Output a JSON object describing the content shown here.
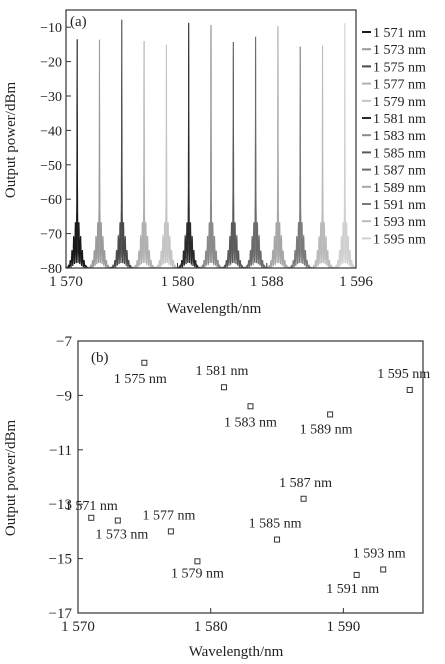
{
  "chart_data": [
    {
      "type": "line",
      "panel_label": "(a)",
      "xlabel": "Wavelength/nm",
      "ylabel": "Output power/dBm",
      "xlim": [
        1570,
        1596
      ],
      "ylim": [
        -80,
        -5
      ],
      "xticks": [
        1570,
        1580,
        1588,
        1596
      ],
      "xtick_labels": [
        "1 570",
        "1 580",
        "1 588",
        "1 596"
      ],
      "yticks": [
        -10,
        -20,
        -30,
        -40,
        -50,
        -60,
        -70,
        -80
      ],
      "ytick_labels": [
        "−10",
        "−20",
        "−30",
        "−40",
        "−50",
        "−60",
        "−70",
        "−80"
      ],
      "legend_position": "right",
      "series": [
        {
          "name": "1 571 nm",
          "peak_x": 1571,
          "peak_y": -13.5,
          "color": "#1a1a1a"
        },
        {
          "name": "1 573 nm",
          "peak_x": 1573,
          "peak_y": -13.6,
          "color": "#9a9a9a"
        },
        {
          "name": "1 575 nm",
          "peak_x": 1575,
          "peak_y": -7.8,
          "color": "#4a4a4a"
        },
        {
          "name": "1 577 nm",
          "peak_x": 1577,
          "peak_y": -14.0,
          "color": "#b0b0b0"
        },
        {
          "name": "1 579 nm",
          "peak_x": 1579,
          "peak_y": -15.1,
          "color": "#c4c4c4"
        },
        {
          "name": "1 581 nm",
          "peak_x": 1581,
          "peak_y": -8.7,
          "color": "#2a2a2a"
        },
        {
          "name": "1 583 nm",
          "peak_x": 1583,
          "peak_y": -9.4,
          "color": "#8a8a8a"
        },
        {
          "name": "1 585 nm",
          "peak_x": 1585,
          "peak_y": -14.3,
          "color": "#5a5a5a"
        },
        {
          "name": "1 587 nm",
          "peak_x": 1587,
          "peak_y": -12.8,
          "color": "#6a6a6a"
        },
        {
          "name": "1 589 nm",
          "peak_x": 1589,
          "peak_y": -9.7,
          "color": "#a6a6a6"
        },
        {
          "name": "1 591 nm",
          "peak_x": 1591,
          "peak_y": -15.6,
          "color": "#7a7a7a"
        },
        {
          "name": "1 593 nm",
          "peak_x": 1593,
          "peak_y": -15.4,
          "color": "#bababa"
        },
        {
          "name": "1 595 nm",
          "peak_x": 1595,
          "peak_y": -8.8,
          "color": "#d0d0d0"
        }
      ],
      "noise_floor_dbm": -80,
      "shoulder_level_dbm": -65
    },
    {
      "type": "scatter",
      "panel_label": "(b)",
      "xlabel": "Wavelength/nm",
      "ylabel": "Output power/dBm",
      "xlim": [
        1570,
        1596
      ],
      "ylim": [
        -17,
        -7
      ],
      "xticks": [
        1570,
        1580,
        1590
      ],
      "xtick_labels": [
        "1 570",
        "1 580",
        "1 590"
      ],
      "yticks": [
        -7,
        -9,
        -11,
        -13,
        -15,
        -17
      ],
      "ytick_labels": [
        "−7",
        "−9",
        "−11",
        "−13",
        "−15",
        "−17"
      ],
      "marker": "hollow-square",
      "points": [
        {
          "x": 1571,
          "y": -13.5,
          "label": "1 571 nm"
        },
        {
          "x": 1573,
          "y": -13.6,
          "label": "1 573 nm"
        },
        {
          "x": 1575,
          "y": -7.8,
          "label": "1 575 nm"
        },
        {
          "x": 1577,
          "y": -14.0,
          "label": "1 577 nm"
        },
        {
          "x": 1579,
          "y": -15.1,
          "label": "1 579 nm"
        },
        {
          "x": 1581,
          "y": -8.7,
          "label": "1 581 nm"
        },
        {
          "x": 1583,
          "y": -9.4,
          "label": "1 583 nm"
        },
        {
          "x": 1585,
          "y": -14.3,
          "label": "1 585 nm"
        },
        {
          "x": 1587,
          "y": -12.8,
          "label": "1 587 nm"
        },
        {
          "x": 1589,
          "y": -9.7,
          "label": "1 589 nm"
        },
        {
          "x": 1591,
          "y": -15.6,
          "label": "1 591 nm"
        },
        {
          "x": 1593,
          "y": -15.4,
          "label": "1 593 nm"
        },
        {
          "x": 1595,
          "y": -8.8,
          "label": "1 595 nm"
        }
      ]
    }
  ]
}
